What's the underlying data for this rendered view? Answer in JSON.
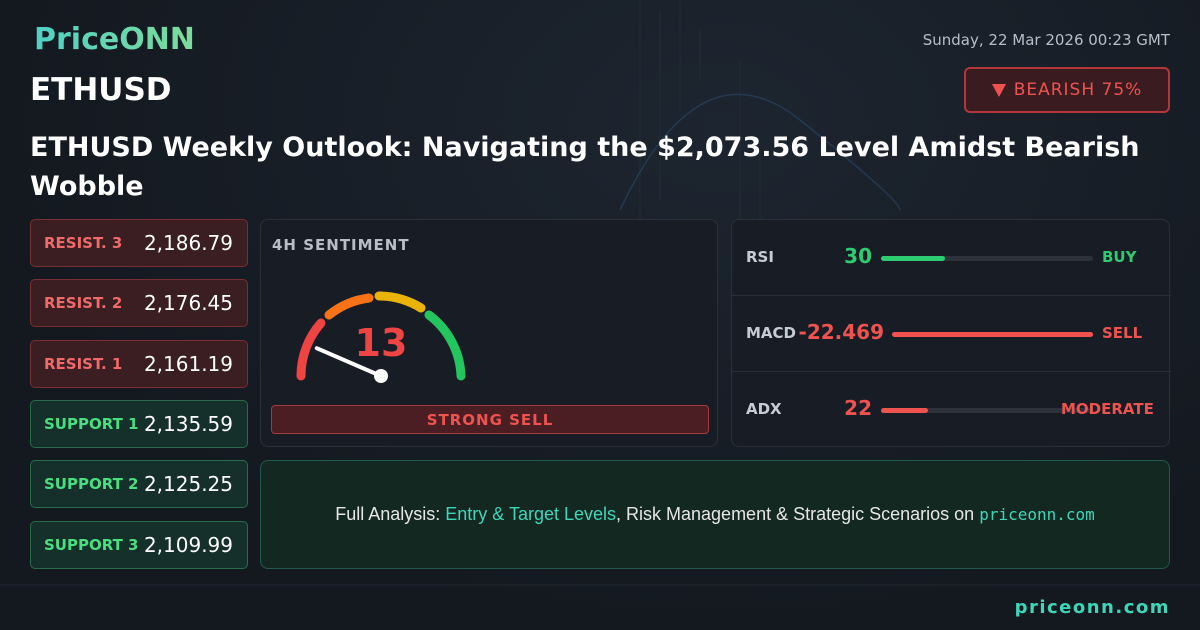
{
  "brand": "PriceONN",
  "date": "Sunday, 22 Mar 2026 00:23 GMT",
  "symbol": "ETHUSD",
  "bias": "BEARISH 75%",
  "headline": "ETHUSD Weekly Outlook: Navigating the $2,073.56 Level Amidst Bearish Wobble",
  "levels": [
    {
      "label": "RESIST. 3",
      "value": "2,186.79"
    },
    {
      "label": "RESIST. 2",
      "value": "2,176.45"
    },
    {
      "label": "RESIST. 1",
      "value": "2,161.19"
    },
    {
      "label": "SUPPORT 1",
      "value": "2,135.59"
    },
    {
      "label": "SUPPORT 2",
      "value": "2,125.25"
    },
    {
      "label": "SUPPORT 3",
      "value": "2,109.99"
    }
  ],
  "sentiment": {
    "title": "4H SENTIMENT",
    "value": 13,
    "signal": "STRONG SELL"
  },
  "indicators": [
    {
      "name": "RSI",
      "value": 30,
      "signal": "BUY"
    },
    {
      "name": "MACD",
      "value": -22.469,
      "signal": "SELL"
    },
    {
      "name": "ADX",
      "value": 22,
      "signal": "MODERATE"
    }
  ],
  "cta": [
    "Full Analysis: ",
    "Entry & Target Levels",
    ", Risk Management & Strategic Scenarios on ",
    "priceonn.com"
  ],
  "footer": "priceonn.com"
}
